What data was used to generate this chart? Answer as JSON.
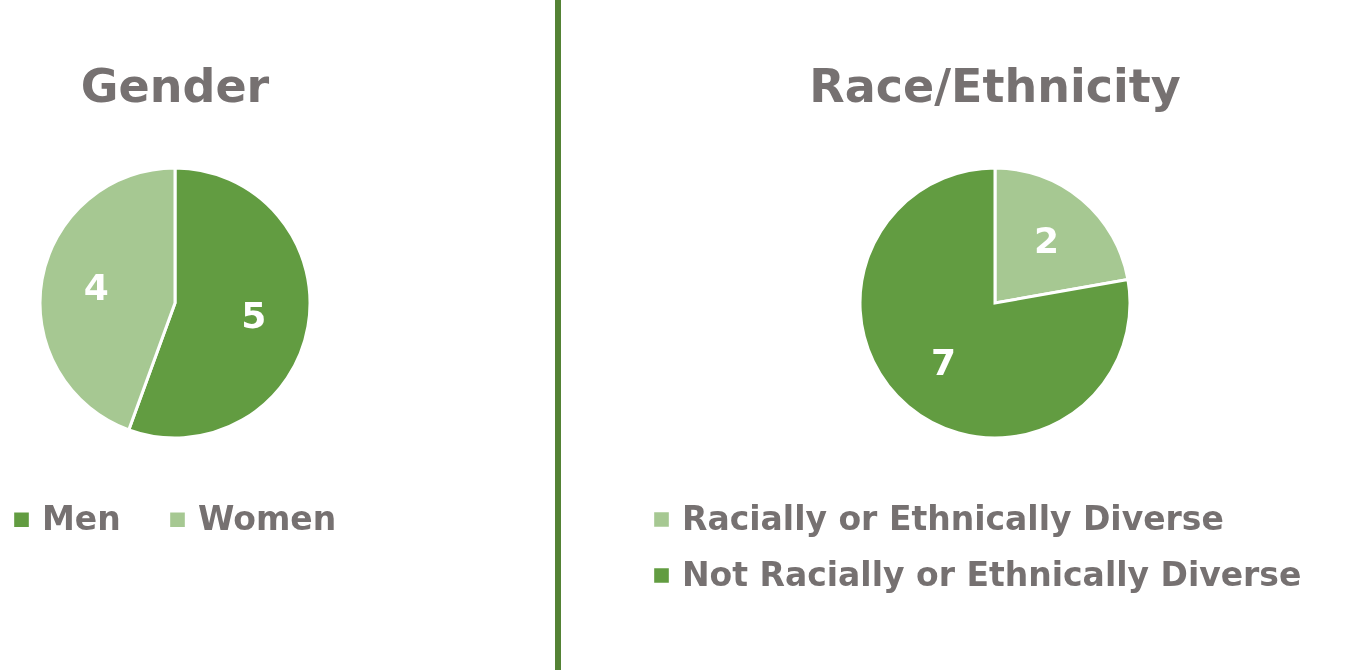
{
  "chart_data": [
    {
      "type": "pie",
      "title": "Gender",
      "categories": [
        "Men",
        "Women"
      ],
      "values": [
        5,
        4
      ],
      "colors": [
        "#629c41",
        "#a6c892"
      ],
      "data_labels": true,
      "legend": "bottom"
    },
    {
      "type": "pie",
      "title": "Race/Ethnicity",
      "categories": [
        "Racially or Ethnically Diverse",
        "Not Racially or Ethnically Diverse"
      ],
      "values": [
        2,
        7
      ],
      "colors": [
        "#a6c892",
        "#629c41"
      ],
      "data_labels": true,
      "legend": "bottom"
    }
  ]
}
